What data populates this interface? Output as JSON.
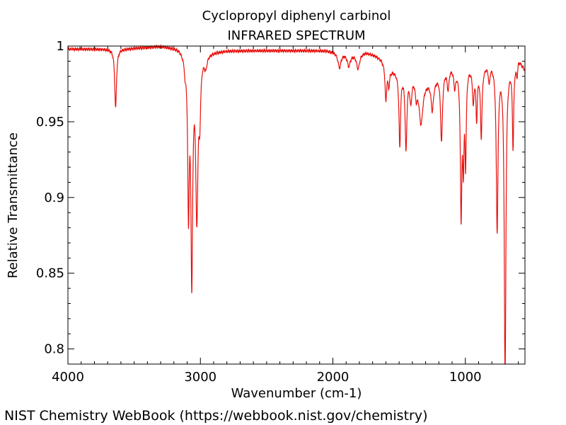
{
  "chart_data": {
    "type": "line",
    "title": "Cyclopropyl diphenyl carbinol",
    "subtitle": "INFRARED SPECTRUM",
    "xlabel": "Wavenumber (cm-1)",
    "ylabel": "Relative Transmittance",
    "xlim": [
      4000,
      550
    ],
    "ylim": [
      0.79,
      1.0
    ],
    "x_reversed": true,
    "x_ticks": [
      4000,
      3000,
      2000,
      1000
    ],
    "x_tick_labels": [
      "4000",
      "3000",
      "2000",
      "1000"
    ],
    "y_ticks": [
      0.8,
      0.85,
      0.9,
      0.95,
      1.0
    ],
    "y_tick_labels": [
      "0.8",
      "0.85",
      "0.9",
      "0.95",
      "1"
    ],
    "grid": false,
    "line_color": "#e8100c",
    "series": [
      {
        "baseline": [
          [
            4000,
            0.998
          ],
          [
            3700,
            0.998
          ],
          [
            3600,
            0.998
          ],
          [
            3450,
            0.999
          ],
          [
            3300,
            1.0
          ],
          [
            3160,
            0.999
          ],
          [
            3120,
            0.996
          ],
          [
            2950,
            0.996
          ],
          [
            2800,
            0.997
          ],
          [
            2600,
            0.997
          ],
          [
            2400,
            0.997
          ],
          [
            2200,
            0.997
          ],
          [
            2050,
            0.997
          ],
          [
            1950,
            0.996
          ],
          [
            1850,
            0.995
          ],
          [
            1750,
            0.996
          ],
          [
            1680,
            0.994
          ],
          [
            1640,
            0.992
          ],
          [
            1560,
            0.985
          ],
          [
            1500,
            0.983
          ],
          [
            1420,
            0.984
          ],
          [
            1360,
            0.982
          ],
          [
            1300,
            0.978
          ],
          [
            1240,
            0.977
          ],
          [
            1190,
            0.984
          ],
          [
            1120,
            0.988
          ],
          [
            1060,
            0.986
          ],
          [
            980,
            0.988
          ],
          [
            900,
            0.985
          ],
          [
            820,
            0.99
          ],
          [
            760,
            0.99
          ],
          [
            700,
            0.985
          ],
          [
            640,
            0.99
          ],
          [
            600,
            0.993
          ],
          [
            550,
            0.985
          ]
        ],
        "bands": [
          {
            "center": 3640,
            "depth": 0.039,
            "width": 8
          },
          {
            "center": 3115,
            "depth": 0.008,
            "width": 6
          },
          {
            "center": 3090,
            "depth": 0.1,
            "width": 7
          },
          {
            "center": 3065,
            "depth": 0.145,
            "width": 8
          },
          {
            "center": 3027,
            "depth": 0.105,
            "width": 10
          },
          {
            "center": 3005,
            "depth": 0.035,
            "width": 8
          },
          {
            "center": 2960,
            "depth": 0.008,
            "width": 12
          },
          {
            "center": 1950,
            "depth": 0.01,
            "width": 14
          },
          {
            "center": 1880,
            "depth": 0.008,
            "width": 14
          },
          {
            "center": 1810,
            "depth": 0.01,
            "width": 14
          },
          {
            "center": 1600,
            "depth": 0.024,
            "width": 7
          },
          {
            "center": 1578,
            "depth": 0.012,
            "width": 7
          },
          {
            "center": 1495,
            "depth": 0.048,
            "width": 7
          },
          {
            "center": 1448,
            "depth": 0.05,
            "width": 8
          },
          {
            "center": 1412,
            "depth": 0.018,
            "width": 10
          },
          {
            "center": 1370,
            "depth": 0.012,
            "width": 10
          },
          {
            "center": 1335,
            "depth": 0.03,
            "width": 18
          },
          {
            "center": 1250,
            "depth": 0.018,
            "width": 10
          },
          {
            "center": 1180,
            "depth": 0.046,
            "width": 9
          },
          {
            "center": 1130,
            "depth": 0.014,
            "width": 9
          },
          {
            "center": 1080,
            "depth": 0.012,
            "width": 8
          },
          {
            "center": 1032,
            "depth": 0.095,
            "width": 7
          },
          {
            "center": 1015,
            "depth": 0.055,
            "width": 6
          },
          {
            "center": 998,
            "depth": 0.06,
            "width": 6
          },
          {
            "center": 940,
            "depth": 0.022,
            "width": 7
          },
          {
            "center": 915,
            "depth": 0.032,
            "width": 6
          },
          {
            "center": 880,
            "depth": 0.045,
            "width": 7
          },
          {
            "center": 820,
            "depth": 0.012,
            "width": 7
          },
          {
            "center": 760,
            "depth": 0.11,
            "width": 8
          },
          {
            "center": 700,
            "depth": 0.21,
            "width": 7
          },
          {
            "center": 640,
            "depth": 0.055,
            "width": 6
          },
          {
            "center": 610,
            "depth": 0.01,
            "width": 6
          }
        ]
      }
    ]
  },
  "footer": "NIST Chemistry WebBook (https://webbook.nist.gov/chemistry)"
}
